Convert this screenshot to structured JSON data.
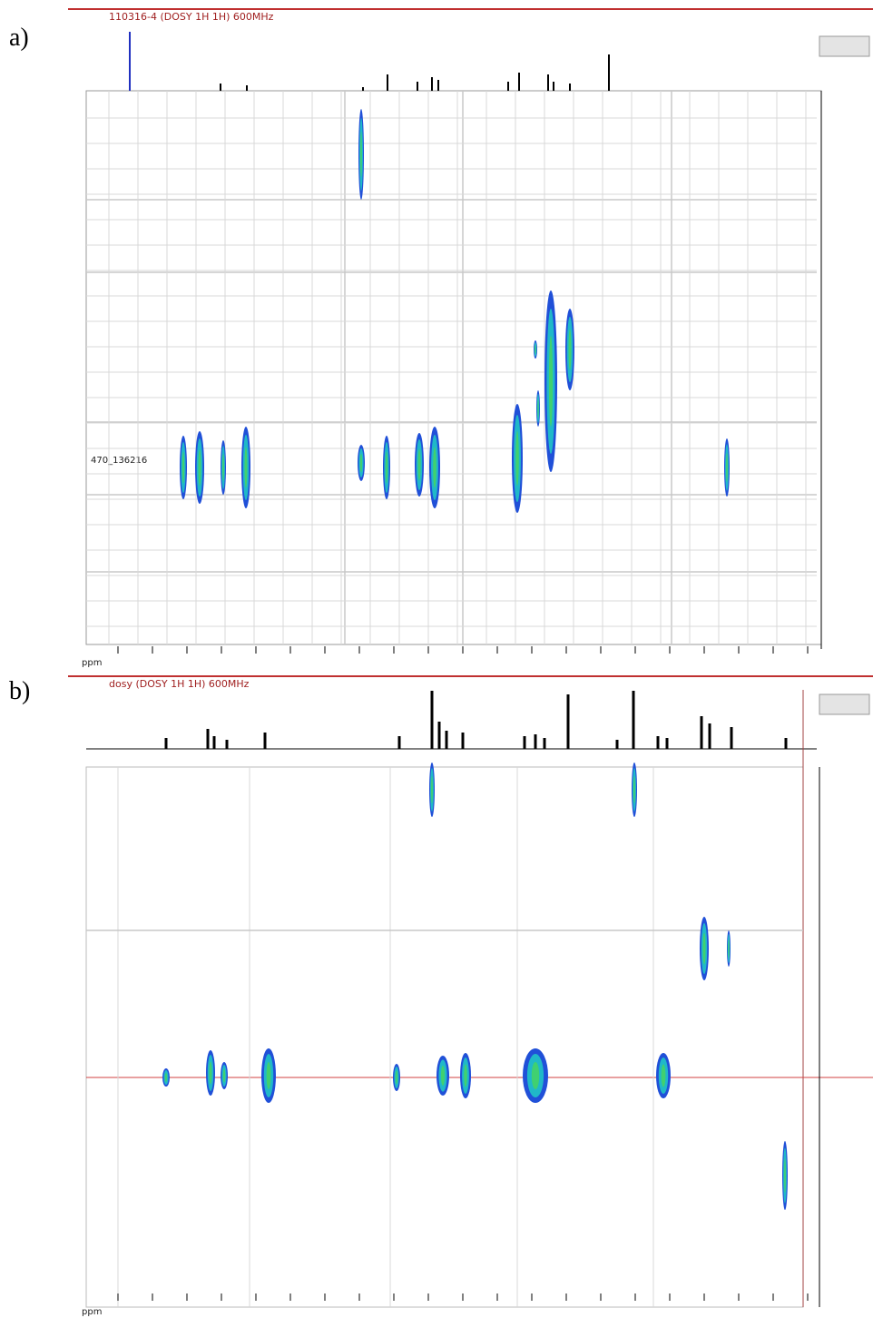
{
  "panels": [
    {
      "label": "a)",
      "title": "110316-4 (DOSY 1H 1H) 600MHz",
      "axis_unit": "ppm",
      "marker_label": "470_136216"
    },
    {
      "label": "b)",
      "title": "dosy (DOSY 1H 1H) 600MHz",
      "axis_unit": "ppm"
    }
  ]
}
